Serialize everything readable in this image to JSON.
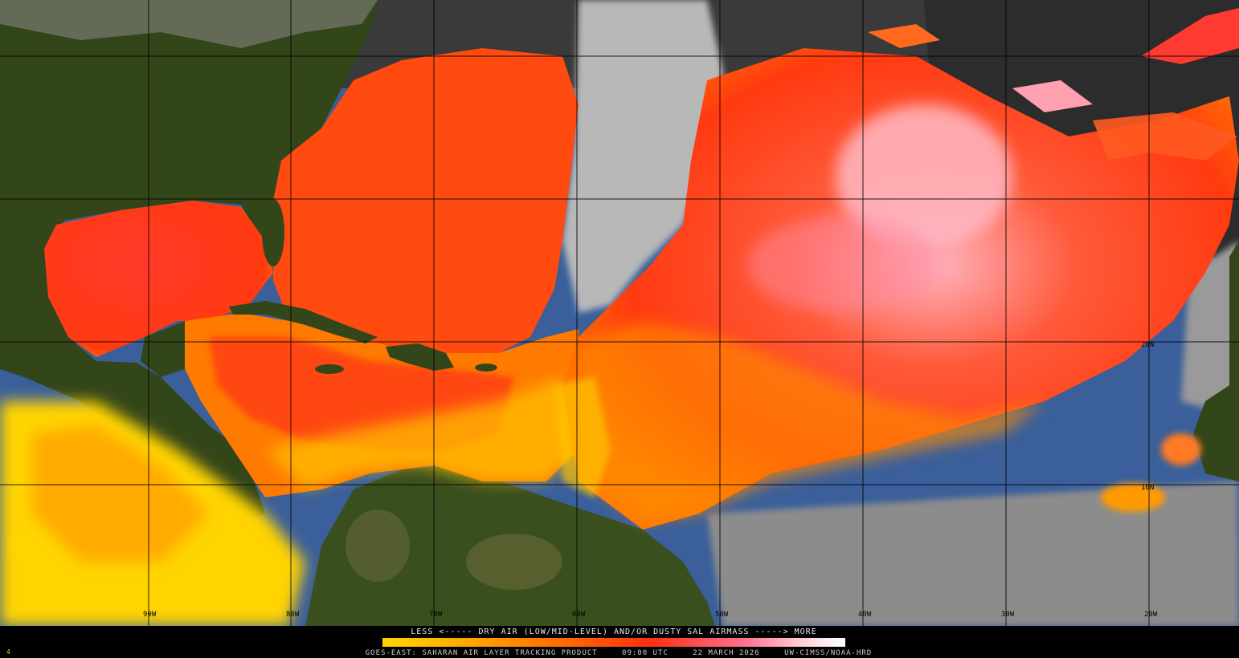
{
  "legend": {
    "title": "LESS <----- DRY AIR (LOW/MID-LEVEL) AND/OR DUSTY SAL AIRMASS -----> MORE"
  },
  "footer": {
    "product": "GOES-EAST: SAHARAN AIR LAYER TRACKING PRODUCT",
    "time": "09:00 UTC",
    "date": "22 MARCH 2026",
    "credit": "UW-CIMSS/NOAA-HRD"
  },
  "corner_mark": "4",
  "grid_labels": {
    "lon": [
      "90W",
      "80W",
      "70W",
      "60W",
      "50W",
      "40W",
      "30W",
      "20W"
    ],
    "lat": [
      "20N",
      "10N"
    ]
  },
  "colors": {
    "land": "#33461a",
    "ocean_clear": "#3a5f9a",
    "cloud": "#b4b4b4",
    "dust_low": "#ffd400",
    "dust_mid": "#ff7a00",
    "dust_high": "#ff2a10",
    "dust_max": "#ffb6c4"
  }
}
